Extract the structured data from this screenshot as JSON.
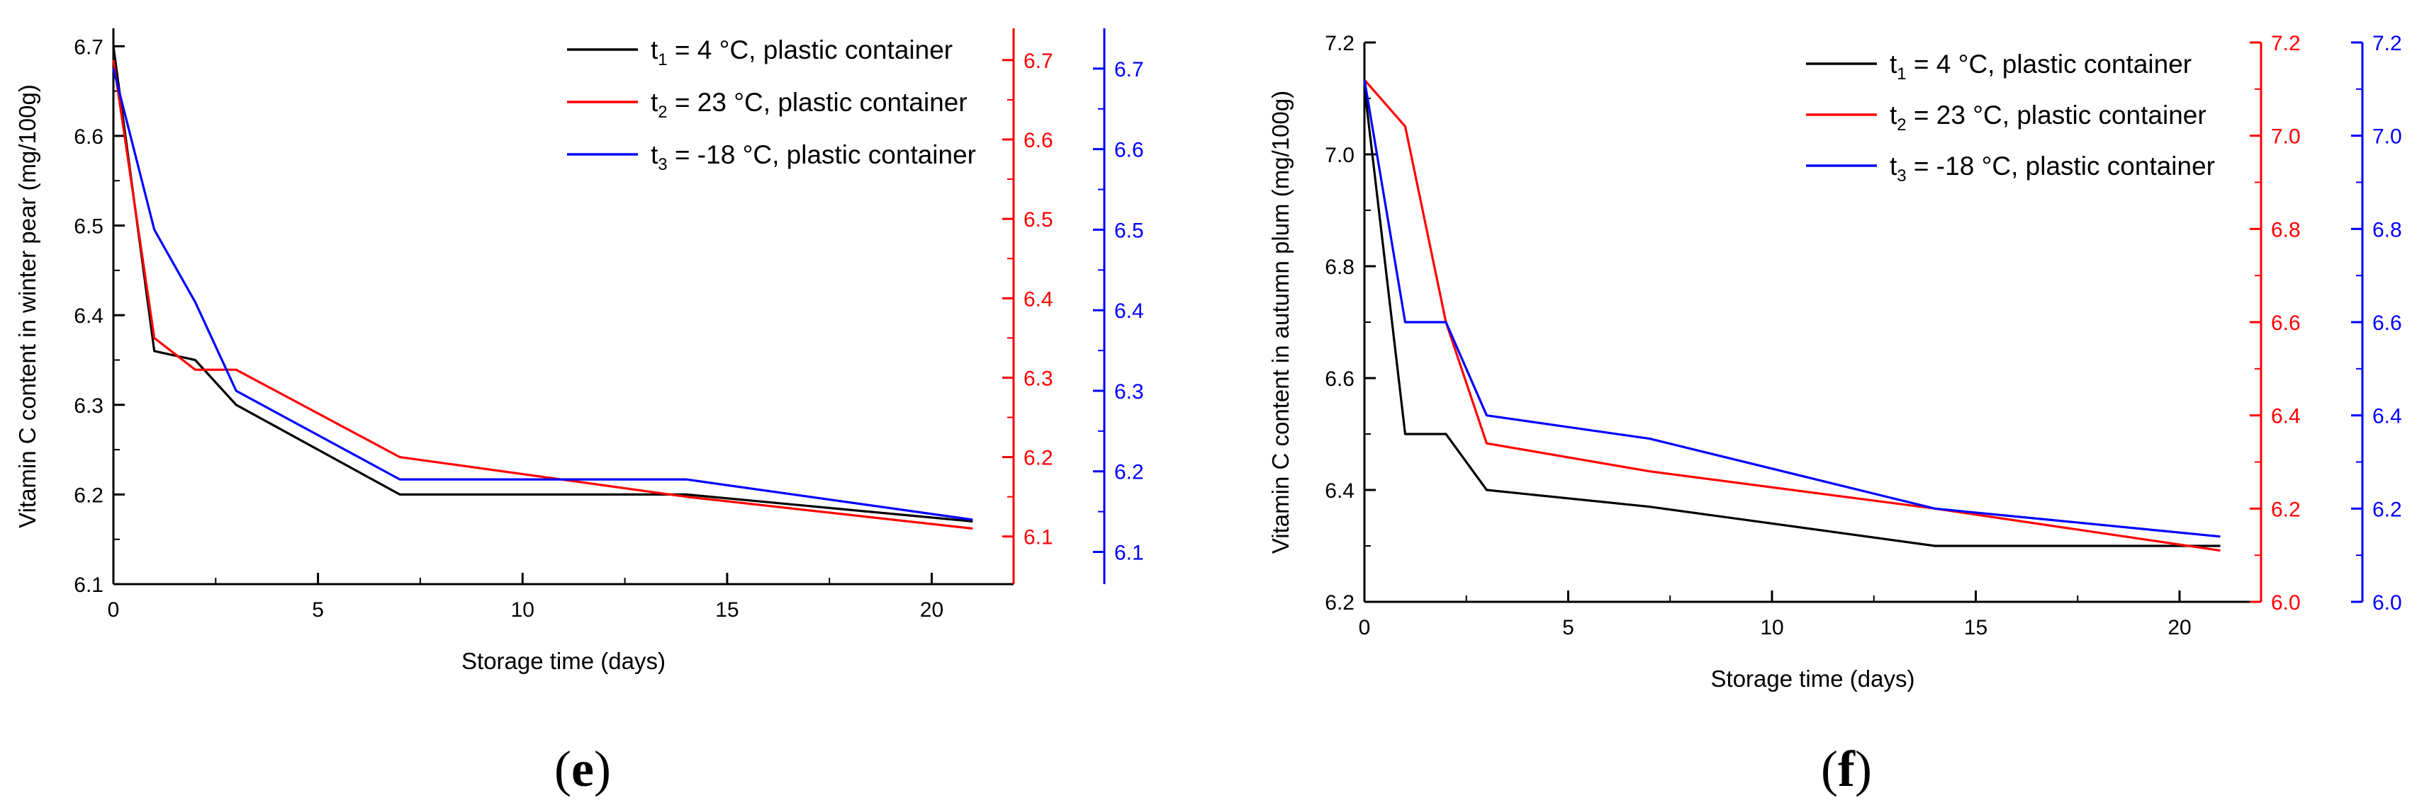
{
  "chart_data": [
    {
      "type": "line",
      "panel_label": "e",
      "xlabel": "Storage time (days)",
      "ylabel": "Vitamin C content in winter pear (mg/100g)",
      "xlim": [
        0,
        22
      ],
      "xticks": [
        0,
        5,
        10,
        15,
        20
      ],
      "ylim": [
        6.1,
        6.72
      ],
      "yticks": [
        6.1,
        6.2,
        6.3,
        6.4,
        6.5,
        6.6,
        6.7
      ],
      "ylim_right1": [
        6.04,
        6.74
      ],
      "yticks_right1": [
        6.1,
        6.2,
        6.3,
        6.4,
        6.5,
        6.6,
        6.7
      ],
      "ylim_right2": [
        6.06,
        6.75
      ],
      "yticks_right2": [
        6.1,
        6.2,
        6.3,
        6.4,
        6.5,
        6.6,
        6.7
      ],
      "legend_position": "top-right",
      "series": [
        {
          "sub": "1",
          "label_rest": " = 4 °C, plastic container",
          "color": "#000000",
          "axis": "left",
          "x": [
            0,
            1,
            2,
            3,
            7,
            14,
            21
          ],
          "y": [
            6.7,
            6.36,
            6.35,
            6.3,
            6.2,
            6.2,
            6.17
          ]
        },
        {
          "sub": "2",
          "label_rest": " = 23 °C, plastic container",
          "color": "#ff0000",
          "axis": "right1",
          "x": [
            0,
            1,
            2,
            3,
            7,
            14,
            21
          ],
          "y": [
            6.7,
            6.35,
            6.31,
            6.31,
            6.2,
            6.15,
            6.11
          ]
        },
        {
          "sub": "3",
          "label_rest": " = -18 °C, plastic container",
          "color": "#0000ff",
          "axis": "right2",
          "x": [
            0,
            1,
            2,
            3,
            7,
            14,
            21
          ],
          "y": [
            6.7,
            6.5,
            6.41,
            6.3,
            6.19,
            6.19,
            6.14
          ]
        }
      ]
    },
    {
      "type": "line",
      "panel_label": "f",
      "xlabel": "Storage time (days)",
      "ylabel": "Vitamin C content in autumn plum (mg/100g)",
      "xlim": [
        0,
        22
      ],
      "xticks": [
        0,
        5,
        10,
        15,
        20
      ],
      "ylim": [
        6.2,
        7.2
      ],
      "yticks": [
        6.2,
        6.4,
        6.6,
        6.8,
        7.0,
        7.2
      ],
      "ylim_right1": [
        6.0,
        7.2
      ],
      "yticks_right1": [
        6.0,
        6.2,
        6.4,
        6.6,
        6.8,
        7.0,
        7.2
      ],
      "ylim_right2": [
        6.0,
        7.2
      ],
      "yticks_right2": [
        6.0,
        6.2,
        6.4,
        6.6,
        6.8,
        7.0,
        7.2
      ],
      "legend_position": "top-right",
      "series": [
        {
          "sub": "1",
          "label_rest": " = 4 °C, plastic container",
          "color": "#000000",
          "axis": "left",
          "x": [
            0,
            1,
            2,
            3,
            7,
            14,
            21
          ],
          "y": [
            7.12,
            6.5,
            6.5,
            6.4,
            6.37,
            6.3,
            6.3
          ]
        },
        {
          "sub": "2",
          "label_rest": " = 23 °C, plastic container",
          "color": "#ff0000",
          "axis": "right1",
          "x": [
            0,
            1,
            2,
            3,
            7,
            14,
            21
          ],
          "y": [
            7.12,
            7.02,
            6.6,
            6.34,
            6.28,
            6.2,
            6.11
          ]
        },
        {
          "sub": "3",
          "label_rest": " = -18 °C, plastic container",
          "color": "#0000ff",
          "axis": "right2",
          "x": [
            0,
            1,
            2,
            3,
            7,
            14,
            21
          ],
          "y": [
            7.12,
            6.6,
            6.6,
            6.4,
            6.35,
            6.2,
            6.14
          ]
        }
      ]
    }
  ]
}
